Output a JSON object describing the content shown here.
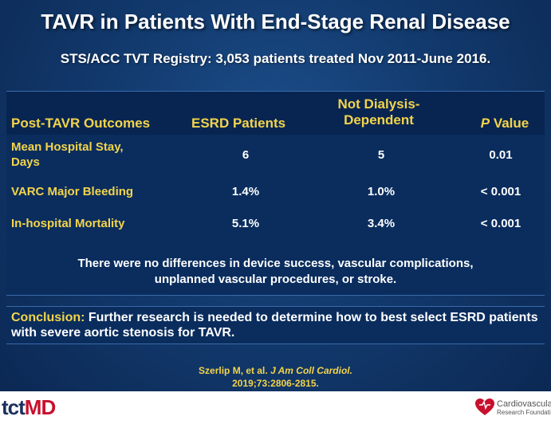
{
  "slide": {
    "title": "TAVR in Patients With End-Stage Renal Disease",
    "subtitle": "STS/ACC TVT Registry: 3,053 patients treated Nov 2011-June 2016."
  },
  "table": {
    "headers": {
      "outcome": "Post-TAVR Outcomes",
      "esrd": "ESRD Patients",
      "not_dialysis_line1": "Not Dialysis-",
      "not_dialysis_line2": "Dependent",
      "p_italic": "P",
      "p_rest": " Value"
    },
    "rows": [
      {
        "label_line1": "Mean Hospital Stay,",
        "label_line2": "Days",
        "esrd": "6",
        "not_dialysis": "5",
        "p": "0.01"
      },
      {
        "label_line1": "VARC Major Bleeding",
        "label_line2": "",
        "esrd": "1.4%",
        "not_dialysis": "1.0%",
        "p": "< 0.001"
      },
      {
        "label_line1": "In-hospital Mortality",
        "label_line2": "",
        "esrd": "5.1%",
        "not_dialysis": "3.4%",
        "p": "< 0.001"
      }
    ],
    "note_line1": "There were no differences in device success, vascular complications,",
    "note_line2": "unplanned vascular procedures, or stroke."
  },
  "conclusion": {
    "lead": "Conclusion:",
    "text": "  Further research is needed to determine how to best select ESRD patients with severe aortic stenosis for TAVR."
  },
  "citation": {
    "authors": "Szerlip M, et al. ",
    "journal": "J Am Coll Cardiol.",
    "ref": "2019;73:2806-2815."
  },
  "footer": {
    "logo_left_tct": "tct",
    "logo_left_md": "MD",
    "logo_right_name": "Cardiovascular",
    "logo_right_sub": "Research Foundation"
  },
  "colors": {
    "background": "#123a6e",
    "accent_yellow": "#f3d44a",
    "logo_red": "#c8102e"
  }
}
